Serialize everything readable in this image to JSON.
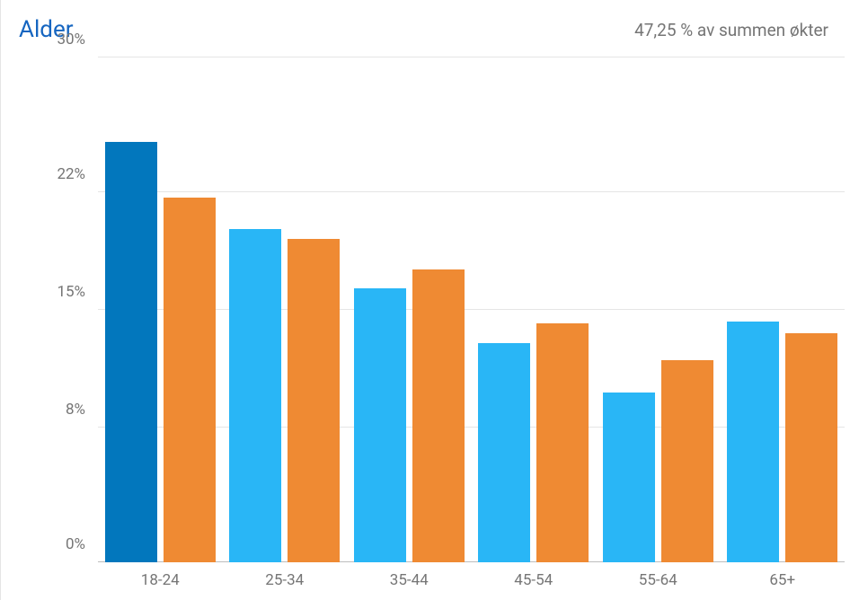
{
  "chart": {
    "type": "bar",
    "title": "Alder",
    "title_color": "#1565c0",
    "subtitle": "47,25 % av summen økter",
    "subtitle_color": "#757575",
    "categories": [
      "18-24",
      "25-34",
      "35-44",
      "45-54",
      "55-64",
      "65+"
    ],
    "series": [
      {
        "color_first": "#0277bd",
        "color_rest": "#29b6f6",
        "values": [
          25.0,
          19.8,
          16.3,
          13.0,
          10.1,
          14.3
        ]
      },
      {
        "color": "#ef8a33",
        "values": [
          21.7,
          19.2,
          17.4,
          14.2,
          12.0,
          13.6
        ]
      }
    ],
    "y": {
      "min": 0,
      "max": 30,
      "ticks": [
        0,
        8,
        15,
        22,
        30
      ],
      "tick_labels": [
        "0%",
        "8%",
        "15%",
        "22%",
        "30%"
      ]
    },
    "axis_label_color": "#757575",
    "grid_color": "#e5e5e5",
    "baseline_color": "#bdbdbd",
    "background_color": "#ffffff",
    "tick_fontsize": 17,
    "title_fontsize": 26,
    "subtitle_fontsize": 19
  }
}
